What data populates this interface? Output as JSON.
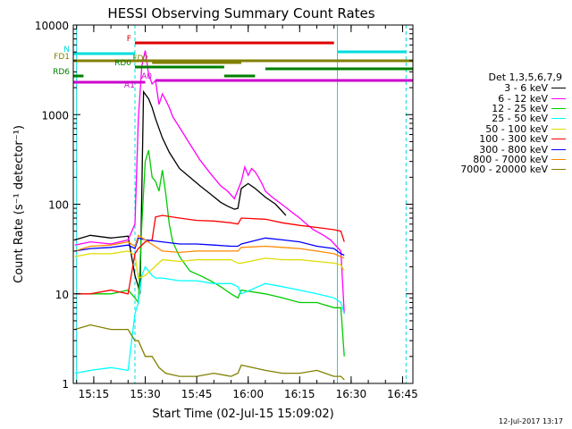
{
  "chart_data": {
    "type": "line",
    "title": "HESSI Observing Summary Count Rates",
    "xlabel": "Start Time (02-Jul-15 15:09:02)",
    "ylabel": "Count Rate (s⁻¹ detector⁻¹)",
    "yscale": "log",
    "ylim": [
      1,
      10000
    ],
    "xlim": [
      "15:09:02",
      "16:48:00"
    ],
    "x_ticks": [
      "15:15",
      "15:30",
      "15:45",
      "16:00",
      "16:15",
      "16:30",
      "16:45"
    ],
    "y_ticks": [
      "1",
      "10",
      "100",
      "1000",
      "10000"
    ],
    "legend_title": "Det 1,3,5,6,7,9",
    "legend_position": "right",
    "series": [
      {
        "name": "3 - 6 keV",
        "color": "#000000",
        "x": [
          "15:09:30",
          "15:14",
          "15:20",
          "15:25",
          "15:27",
          "15:28",
          "15:28.5",
          "15:29.5",
          "15:31",
          "15:32",
          "15:33",
          "15:35",
          "15:37",
          "15:40",
          "15:43",
          "15:46",
          "15:49",
          "15:52",
          "15:54",
          "15:56",
          "15:57",
          "15:58",
          "16:00",
          "16:02",
          "16:05",
          "16:08",
          "16:11"
        ],
        "y": [
          40,
          45,
          42,
          44,
          16,
          12,
          10,
          1800,
          1500,
          1200,
          900,
          550,
          380,
          250,
          200,
          160,
          130,
          105,
          95,
          88,
          90,
          150,
          170,
          150,
          120,
          100,
          75
        ]
      },
      {
        "name": "6 - 12 keV",
        "color": "#ff00ff",
        "x": [
          "15:09:30",
          "15:14",
          "15:20",
          "15:25",
          "15:27",
          "15:28",
          "15:29",
          "15:30",
          "15:31",
          "15:32",
          "15:33",
          "15:34",
          "15:35",
          "15:36",
          "15:37",
          "15:38",
          "15:40",
          "15:43",
          "15:46",
          "15:49",
          "15:52",
          "15:54",
          "15:56",
          "15:58",
          "15:59",
          "16:00",
          "16:01",
          "16:02",
          "16:03",
          "16:04",
          "16:05",
          "16:07",
          "16:09",
          "16:11",
          "16:13",
          "16:15",
          "16:17",
          "16:19",
          "16:22",
          "16:24",
          "16:27",
          "16:28"
        ],
        "y": [
          35,
          38,
          36,
          40,
          60,
          900,
          3500,
          5200,
          2800,
          2200,
          2400,
          1300,
          1700,
          1450,
          1200,
          950,
          720,
          470,
          310,
          220,
          160,
          140,
          115,
          180,
          260,
          210,
          250,
          230,
          200,
          170,
          140,
          120,
          105,
          92,
          80,
          70,
          60,
          52,
          45,
          40,
          30,
          6
        ]
      },
      {
        "name": "12 - 25 keV",
        "color": "#00cc00",
        "x": [
          "15:09:30",
          "15:14",
          "15:20",
          "15:25",
          "15:27",
          "15:28",
          "15:29",
          "15:30",
          "15:31",
          "15:32",
          "15:33",
          "15:34",
          "15:35",
          "15:36",
          "15:37",
          "15:38",
          "15:40",
          "15:43",
          "15:46",
          "15:49",
          "15:52",
          "15:55",
          "15:57",
          "15:58",
          "16:05",
          "16:10",
          "16:15",
          "16:20",
          "16:25",
          "16:27",
          "16:28"
        ],
        "y": [
          10,
          10,
          10,
          11,
          9,
          8,
          60,
          300,
          400,
          200,
          180,
          140,
          240,
          130,
          60,
          38,
          26,
          18,
          16,
          14,
          12,
          10,
          9,
          11,
          10,
          9,
          8,
          8,
          7,
          7,
          2
        ]
      },
      {
        "name": "25 - 50 keV",
        "color": "#00ffff",
        "x": [
          "15:09:30",
          "15:14",
          "15:20",
          "15:25",
          "15:27",
          "15:28",
          "15:29",
          "15:30",
          "15:31",
          "15:32",
          "15:33",
          "15:35",
          "15:40",
          "15:45",
          "15:50",
          "15:55",
          "15:57",
          "15:58",
          "16:05",
          "16:10",
          "16:15",
          "16:20",
          "16:25",
          "16:27",
          "16:28"
        ],
        "y": [
          1.3,
          1.4,
          1.5,
          1.4,
          6,
          8,
          16,
          20,
          18,
          16,
          15,
          15,
          14,
          14,
          13,
          13,
          12,
          10,
          13,
          12,
          11,
          10,
          9,
          8,
          6
        ]
      },
      {
        "name": "50 - 100 keV",
        "color": "#dddd00",
        "x": [
          "15:09:30",
          "15:14",
          "15:20",
          "15:25",
          "15:27",
          "15:28",
          "15:30",
          "15:35",
          "15:40",
          "15:45",
          "15:50",
          "15:55",
          "15:57",
          "15:58",
          "16:05",
          "16:10",
          "16:15",
          "16:20",
          "16:25",
          "16:27",
          "16:28"
        ],
        "y": [
          26,
          28,
          28,
          30,
          27,
          15,
          16,
          24,
          23,
          24,
          24,
          24,
          22,
          22,
          25,
          24,
          24,
          23,
          22,
          21,
          18
        ]
      },
      {
        "name": "100 - 300 keV",
        "color": "#ff0000",
        "x": [
          "15:09:30",
          "15:14",
          "15:20",
          "15:25",
          "15:27",
          "15:28",
          "15:30",
          "15:32",
          "15:33",
          "15:35",
          "15:40",
          "15:45",
          "15:50",
          "15:55",
          "15:57",
          "15:58",
          "16:05",
          "16:10",
          "16:15",
          "16:20",
          "16:25",
          "16:27",
          "16:28"
        ],
        "y": [
          10,
          10,
          11,
          10,
          28,
          32,
          38,
          40,
          72,
          75,
          70,
          66,
          65,
          62,
          60,
          70,
          68,
          62,
          58,
          55,
          52,
          50,
          38
        ]
      },
      {
        "name": "300 - 800 keV",
        "color": "#0000ff",
        "x": [
          "15:09:30",
          "15:14",
          "15:20",
          "15:25",
          "15:27",
          "15:28",
          "15:30",
          "15:35",
          "15:40",
          "15:45",
          "15:50",
          "15:55",
          "15:57",
          "15:58",
          "16:05",
          "16:10",
          "16:15",
          "16:20",
          "16:25",
          "16:27",
          "16:28"
        ],
        "y": [
          30,
          32,
          33,
          35,
          32,
          42,
          40,
          38,
          36,
          36,
          35,
          34,
          34,
          36,
          42,
          40,
          38,
          34,
          32,
          28,
          27
        ]
      },
      {
        "name": "800 - 7000 keV",
        "color": "#ff8800",
        "x": [
          "15:09:30",
          "15:14",
          "15:20",
          "15:25",
          "15:27",
          "15:28",
          "15:30",
          "15:35",
          "15:40",
          "15:45",
          "15:50",
          "15:55",
          "15:57",
          "15:58",
          "16:05",
          "16:10",
          "16:15",
          "16:20",
          "16:25",
          "16:27",
          "16:28"
        ],
        "y": [
          30,
          34,
          35,
          38,
          34,
          45,
          40,
          30,
          29,
          30,
          30,
          30,
          30,
          33,
          34,
          33,
          32,
          30,
          28,
          26,
          25
        ]
      },
      {
        "name": "7000 - 20000 keV",
        "color": "#808000",
        "x": [
          "15:09:30",
          "15:14",
          "15:20",
          "15:25",
          "15:27",
          "15:28",
          "15:30",
          "15:32",
          "15:34",
          "15:36",
          "15:40",
          "15:45",
          "15:50",
          "15:55",
          "15:57",
          "15:58",
          "16:05",
          "16:10",
          "16:15",
          "16:20",
          "16:25",
          "16:27",
          "16:28"
        ],
        "y": [
          4,
          4.5,
          4,
          4,
          3,
          3,
          2,
          2,
          1.5,
          1.3,
          1.2,
          1.2,
          1.3,
          1.2,
          1.3,
          1.6,
          1.4,
          1.3,
          1.3,
          1.4,
          1.2,
          1.2,
          1.1
        ]
      }
    ],
    "flags": [
      {
        "label": "F",
        "color": "#dd0000",
        "start": "15:27",
        "end": "16:25"
      },
      {
        "label": "N",
        "color": "#00dddd",
        "start": "15:09:02",
        "end": "15:27"
      },
      {
        "label": "",
        "color": "#00dddd",
        "start": "16:26",
        "end": "16:46"
      },
      {
        "label": "FD1",
        "color": "#808000",
        "start": "15:09:02",
        "end": "16:48:00"
      },
      {
        "label": "FD2",
        "color": "#808000",
        "start": "15:32",
        "end": "15:58"
      },
      {
        "label": "RD0",
        "color": "#008000",
        "start": "15:27",
        "end": "15:53"
      },
      {
        "label": "",
        "color": "#008000",
        "start": "16:05",
        "end": "16:48:00"
      },
      {
        "label": "RD6",
        "color": "#008000",
        "start": "15:09:02",
        "end": "15:12"
      },
      {
        "label": "",
        "color": "#008000",
        "start": "15:09:02",
        "end": "15:09:02"
      },
      {
        "label": "",
        "color": "#008000",
        "start": "15:53",
        "end": "16:02"
      },
      {
        "label": "A1",
        "color": "#cc00cc",
        "start": "15:28",
        "end": "15:28"
      },
      {
        "label": "A0",
        "color": "#cc00cc",
        "start": "15:33",
        "end": "16:48:00"
      },
      {
        "label": "",
        "color": "#cc00cc",
        "start": "15:09:02",
        "end": "15:30"
      }
    ],
    "night_intervals": [
      {
        "start": "15:10",
        "end": "15:27"
      },
      {
        "start": "16:26",
        "end": "16:46"
      }
    ]
  },
  "footer": {
    "timestamp": "12-Jul-2017 13:17"
  }
}
